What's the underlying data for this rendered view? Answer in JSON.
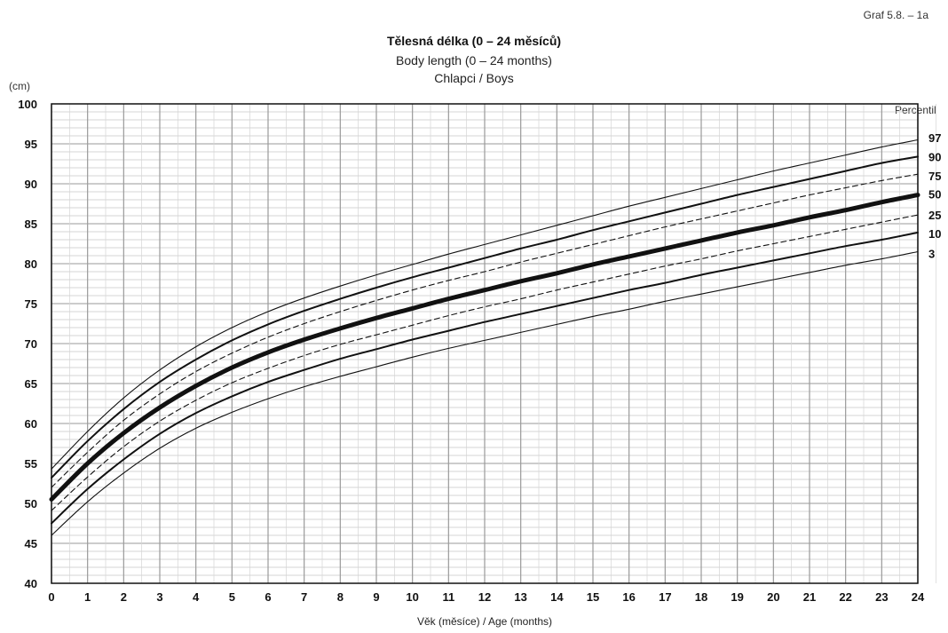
{
  "header": {
    "graph_id": "Graf 5.8. – 1a",
    "unit": "(cm)",
    "percentile_header": "Percentil"
  },
  "chart_data": {
    "type": "line",
    "title": "Tělesná délka (0 – 24 měsíců)",
    "subtitle": "Body length (0 – 24 months)",
    "subtitle2": "Chlapci / Boys",
    "xlabel": "Věk (měsíce) / Age (months)",
    "ylabel": "(cm)",
    "xlim": [
      0,
      24
    ],
    "ylim": [
      40,
      100
    ],
    "x_ticks": [
      0,
      1,
      2,
      3,
      4,
      5,
      6,
      7,
      8,
      9,
      10,
      11,
      12,
      13,
      14,
      15,
      16,
      17,
      18,
      19,
      20,
      21,
      22,
      23,
      24
    ],
    "y_ticks": [
      40,
      45,
      50,
      55,
      60,
      65,
      70,
      75,
      80,
      85,
      90,
      95,
      100
    ],
    "grid": true,
    "x": [
      0,
      1,
      2,
      3,
      4,
      5,
      6,
      7,
      8,
      9,
      10,
      11,
      12,
      13,
      14,
      15,
      16,
      17,
      18,
      19,
      20,
      21,
      22,
      23,
      24
    ],
    "series": [
      {
        "name": "97",
        "style": "thin",
        "values": [
          54.3,
          59.0,
          63.2,
          66.7,
          69.6,
          72.0,
          74.0,
          75.7,
          77.2,
          78.6,
          79.9,
          81.2,
          82.4,
          83.6,
          84.8,
          86.0,
          87.2,
          88.3,
          89.4,
          90.5,
          91.6,
          92.6,
          93.6,
          94.6,
          95.5
        ]
      },
      {
        "name": "90",
        "style": "medium",
        "values": [
          53.2,
          57.8,
          61.8,
          65.2,
          68.0,
          70.4,
          72.4,
          74.1,
          75.6,
          77.0,
          78.3,
          79.5,
          80.7,
          81.9,
          83.0,
          84.2,
          85.3,
          86.4,
          87.5,
          88.6,
          89.6,
          90.6,
          91.6,
          92.6,
          93.4
        ]
      },
      {
        "name": "75",
        "style": "dashed",
        "values": [
          52.0,
          56.4,
          60.4,
          63.7,
          66.5,
          68.8,
          70.8,
          72.5,
          74.0,
          75.4,
          76.7,
          77.9,
          79.0,
          80.2,
          81.3,
          82.4,
          83.5,
          84.6,
          85.6,
          86.6,
          87.6,
          88.6,
          89.5,
          90.4,
          91.2
        ]
      },
      {
        "name": "50",
        "style": "bold",
        "values": [
          50.5,
          55.0,
          58.8,
          62.0,
          64.7,
          67.0,
          68.9,
          70.5,
          71.9,
          73.2,
          74.4,
          75.6,
          76.7,
          77.8,
          78.8,
          79.9,
          80.9,
          81.9,
          82.9,
          83.9,
          84.8,
          85.8,
          86.7,
          87.7,
          88.6
        ]
      },
      {
        "name": "25",
        "style": "dashed",
        "values": [
          49.1,
          53.3,
          57.1,
          60.3,
          62.9,
          65.1,
          66.9,
          68.5,
          69.9,
          71.1,
          72.3,
          73.5,
          74.6,
          75.6,
          76.7,
          77.7,
          78.7,
          79.7,
          80.6,
          81.6,
          82.5,
          83.4,
          84.3,
          85.2,
          86.1
        ]
      },
      {
        "name": "10",
        "style": "medium",
        "values": [
          47.5,
          51.8,
          55.5,
          58.7,
          61.3,
          63.4,
          65.2,
          66.7,
          68.1,
          69.3,
          70.5,
          71.6,
          72.7,
          73.7,
          74.7,
          75.7,
          76.7,
          77.6,
          78.6,
          79.5,
          80.4,
          81.3,
          82.2,
          83.0,
          83.9
        ]
      },
      {
        "name": "3",
        "style": "thin",
        "values": [
          46.0,
          50.2,
          53.8,
          56.9,
          59.4,
          61.4,
          63.1,
          64.6,
          65.9,
          67.1,
          68.3,
          69.4,
          70.4,
          71.4,
          72.4,
          73.4,
          74.3,
          75.3,
          76.2,
          77.1,
          78.0,
          78.9,
          79.8,
          80.6,
          81.5
        ]
      }
    ],
    "percentile_labels": [
      {
        "text": "97",
        "y": 95.8
      },
      {
        "text": "90",
        "y": 93.4
      },
      {
        "text": "75",
        "y": 91.0
      },
      {
        "text": "50",
        "y": 88.7
      },
      {
        "text": "25",
        "y": 86.1
      },
      {
        "text": "10",
        "y": 83.8
      },
      {
        "text": "3",
        "y": 81.3
      }
    ]
  }
}
